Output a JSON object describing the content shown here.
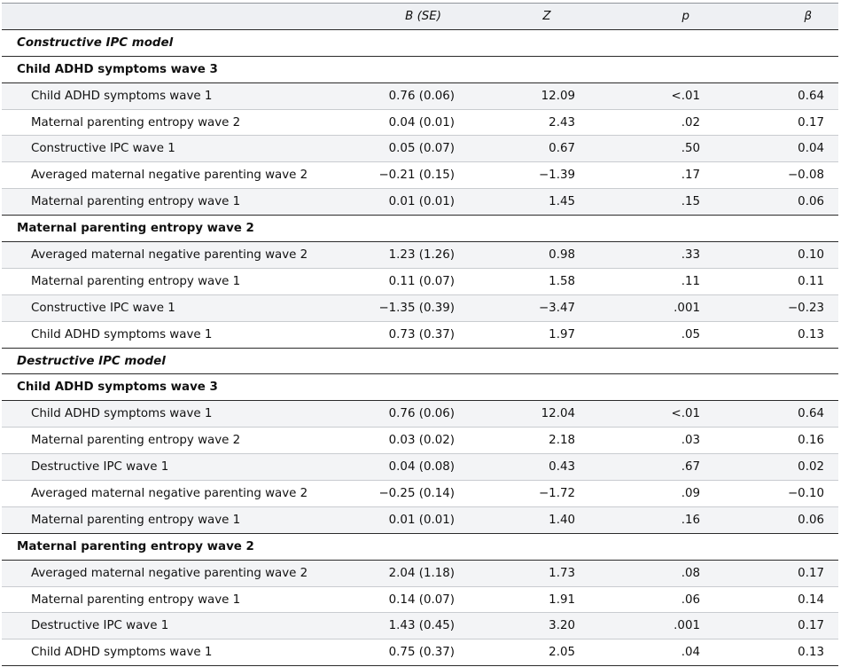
{
  "header": {
    "col0": "",
    "col1": "B (SE)",
    "col2": "Z",
    "col3": "p",
    "col4": "β"
  },
  "models": [
    {
      "title": "Constructive IPC model",
      "sections": [
        {
          "title": "Child ADHD symptoms wave 3",
          "rows": [
            {
              "label": "Child ADHD symptoms wave 1",
              "b_se": "0.76 (0.06)",
              "z": "12.09",
              "p": "<.01",
              "beta": "0.64"
            },
            {
              "label": "Maternal parenting entropy wave 2",
              "b_se": "0.04 (0.01)",
              "z": "2.43",
              "p": ".02",
              "beta": "0.17"
            },
            {
              "label": "Constructive IPC wave 1",
              "b_se": "0.05 (0.07)",
              "z": "0.67",
              "p": ".50",
              "beta": "0.04"
            },
            {
              "label": "Averaged maternal negative parenting wave 2",
              "b_se": "−0.21 (0.15)",
              "z": "−1.39",
              "p": ".17",
              "beta": "−0.08"
            },
            {
              "label": "Maternal parenting entropy wave 1",
              "b_se": "0.01 (0.01)",
              "z": "1.45",
              "p": ".15",
              "beta": "0.06"
            }
          ]
        },
        {
          "title": "Maternal parenting entropy wave 2",
          "rows": [
            {
              "label": "Averaged maternal negative parenting wave 2",
              "b_se": "1.23 (1.26)",
              "z": "0.98",
              "p": ".33",
              "beta": "0.10"
            },
            {
              "label": "Maternal parenting entropy wave 1",
              "b_se": "0.11 (0.07)",
              "z": "1.58",
              "p": ".11",
              "beta": "0.11"
            },
            {
              "label": "Constructive IPC wave 1",
              "b_se": "−1.35 (0.39)",
              "z": "−3.47",
              "p": ".001",
              "beta": "−0.23"
            },
            {
              "label": "Child ADHD symptoms wave 1",
              "b_se": "0.73 (0.37)",
              "z": "1.97",
              "p": ".05",
              "beta": "0.13"
            }
          ]
        }
      ]
    },
    {
      "title": "Destructive IPC model",
      "sections": [
        {
          "title": "Child ADHD symptoms wave 3",
          "rows": [
            {
              "label": "Child ADHD symptoms wave 1",
              "b_se": "0.76 (0.06)",
              "z": "12.04",
              "p": "<.01",
              "beta": "0.64"
            },
            {
              "label": "Maternal parenting entropy wave 2",
              "b_se": "0.03 (0.02)",
              "z": "2.18",
              "p": ".03",
              "beta": "0.16"
            },
            {
              "label": "Destructive IPC wave 1",
              "b_se": "0.04 (0.08)",
              "z": "0.43",
              "p": ".67",
              "beta": "0.02"
            },
            {
              "label": "Averaged maternal negative parenting wave 2",
              "b_se": "−0.25 (0.14)",
              "z": "−1.72",
              "p": ".09",
              "beta": "−0.10"
            },
            {
              "label": "Maternal parenting entropy wave 1",
              "b_se": "0.01 (0.01)",
              "z": "1.40",
              "p": ".16",
              "beta": "0.06"
            }
          ]
        },
        {
          "title": "Maternal parenting entropy wave 2",
          "rows": [
            {
              "label": "Averaged maternal negative parenting wave 2",
              "b_se": "2.04 (1.18)",
              "z": "1.73",
              "p": ".08",
              "beta": "0.17"
            },
            {
              "label": "Maternal parenting entropy wave 1",
              "b_se": "0.14 (0.07)",
              "z": "1.91",
              "p": ".06",
              "beta": "0.14"
            },
            {
              "label": "Destructive IPC wave 1",
              "b_se": "1.43 (0.45)",
              "z": "3.20",
              "p": ".001",
              "beta": "0.17"
            },
            {
              "label": "Child ADHD symptoms wave 1",
              "b_se": "0.75 (0.37)",
              "z": "2.05",
              "p": ".04",
              "beta": "0.13"
            }
          ]
        }
      ]
    }
  ]
}
